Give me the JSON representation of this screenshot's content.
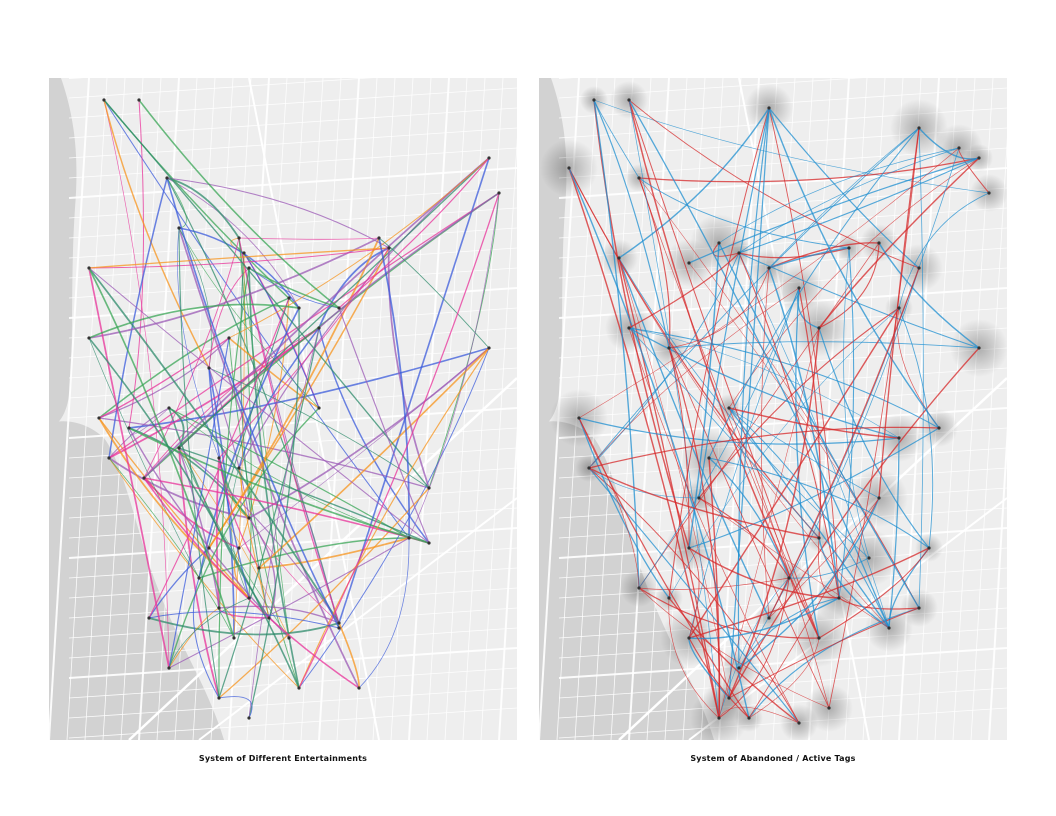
{
  "figure": {
    "panels": [
      {
        "caption": "System of Different Entertainments",
        "route_colors": [
          "#e8329a",
          "#f7941d",
          "#3aa655",
          "#2e8b6b",
          "#3b5bdb",
          "#9b59b6"
        ]
      },
      {
        "caption": "System of Abandoned / Active Tags",
        "route_colors": [
          "#d62728",
          "#1f8fd0"
        ]
      }
    ]
  },
  "colors": {
    "land": "#eeeeee",
    "water": "#d2d2d2",
    "streets": "#ffffff",
    "nodes": "#333333"
  }
}
